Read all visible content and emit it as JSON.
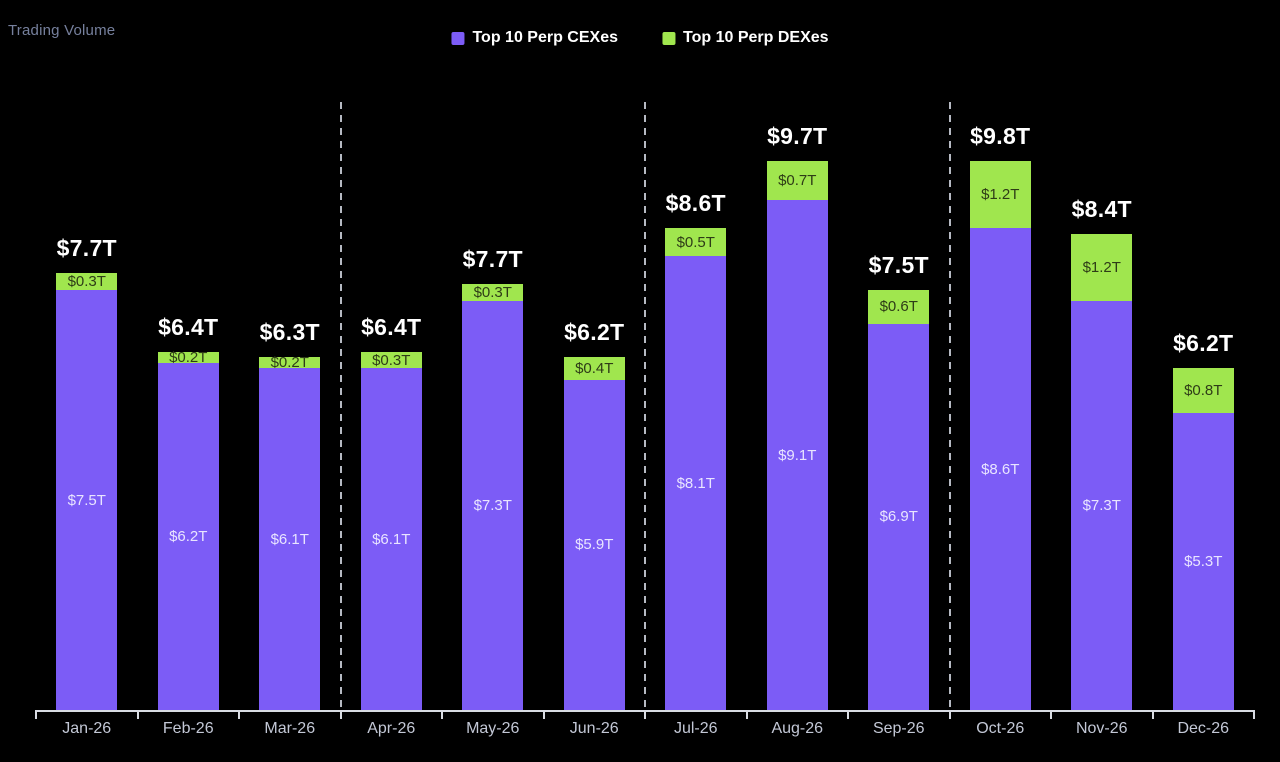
{
  "page": {
    "background": "#000000"
  },
  "header": {
    "title": "Trading Volume",
    "legend": [
      {
        "label": "Top 10 Perp CEXes",
        "color": "#7c5cf6"
      },
      {
        "label": "Top 10 Perp DEXes",
        "color": "#a0e64e"
      }
    ]
  },
  "chart_data": {
    "type": "bar",
    "stacked": true,
    "title": "Trading Volume",
    "categories": [
      "Jan-26",
      "Feb-26",
      "Mar-26",
      "Apr-26",
      "May-26",
      "Jun-26",
      "Jul-26",
      "Aug-26",
      "Sep-26",
      "Oct-26",
      "Nov-26",
      "Dec-26"
    ],
    "series": [
      {
        "name": "Top 10 Perp CEXes",
        "color": "#7c5cf6",
        "label_color": "#e9e5ff",
        "values": [
          7.5,
          6.2,
          6.1,
          6.1,
          7.3,
          5.9,
          8.1,
          9.1,
          6.9,
          8.6,
          7.3,
          5.3
        ],
        "labels": [
          "$7.5T",
          "$6.2T",
          "$6.1T",
          "$6.1T",
          "$7.3T",
          "$5.9T",
          "$8.1T",
          "$9.1T",
          "$6.9T",
          "$8.6T",
          "$7.3T",
          "$5.3T"
        ]
      },
      {
        "name": "Top 10 Perp DEXes",
        "color": "#a0e64e",
        "label_color": "#2e3c17",
        "values": [
          0.3,
          0.2,
          0.2,
          0.3,
          0.3,
          0.4,
          0.5,
          0.7,
          0.6,
          1.2,
          1.2,
          0.8
        ],
        "labels": [
          "$0.3T",
          "$0.2T",
          "$0.2T",
          "$0.3T",
          "$0.3T",
          "$0.4T",
          "$0.5T",
          "$0.7T",
          "$0.6T",
          "$1.2T",
          "$1.2T",
          "$0.8T"
        ]
      }
    ],
    "totals": [
      "$7.7T",
      "$6.4T",
      "$6.3T",
      "$6.4T",
      "$7.7T",
      "$6.2T",
      "$8.6T",
      "$9.7T",
      "$7.5T",
      "$9.8T",
      "$8.4T",
      "$6.2T"
    ],
    "value_prefix": "$",
    "value_suffix": "T",
    "ylim": [
      0,
      10.9
    ],
    "grid": false,
    "legend_position": "top-center",
    "quarter_separators_after_index": [
      2,
      5,
      8
    ],
    "axis": {
      "label_color": "#c3c8d6",
      "line_color": "#d9dce3",
      "separator_color": "#b6bac3"
    }
  }
}
